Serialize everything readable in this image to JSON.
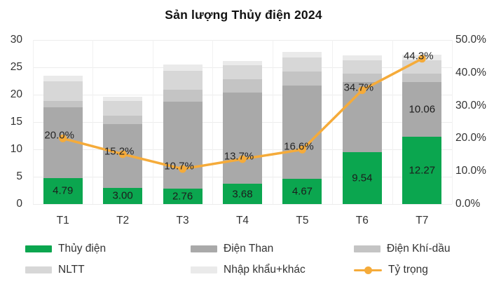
{
  "title": "Sản lượng Thủy điện 2024",
  "colors": {
    "hydro": "#0ba64f",
    "coal": "#a9a9a9",
    "gas": "#c4c4c4",
    "renewable": "#d7d7d7",
    "import": "#eaeaea",
    "line": "#f5ab3a",
    "grid": "#ececec",
    "text": "#2b2b2b"
  },
  "chart_data": {
    "type": "combo",
    "bar_type": "stacked-bar",
    "line_type": "line",
    "title": "Sản lượng Thủy điện 2024",
    "categories": [
      "T1",
      "T2",
      "T3",
      "T4",
      "T5",
      "T6",
      "T7"
    ],
    "bar_series": [
      {
        "name": "Thủy điện",
        "color_key": "hydro",
        "values": [
          4.79,
          3.0,
          2.76,
          3.68,
          4.67,
          9.54,
          12.27
        ],
        "labels": [
          "4.79",
          "3.00",
          "2.76",
          "3.68",
          "4.67",
          "9.54",
          "12.27"
        ]
      },
      {
        "name": "Điện Than",
        "color_key": "coal",
        "values": [
          12.9,
          11.6,
          15.9,
          16.7,
          17.0,
          12.8,
          10.06
        ],
        "labels": [
          null,
          null,
          null,
          null,
          null,
          null,
          "10.06"
        ]
      },
      {
        "name": "Điện Khí-dầu",
        "color_key": "gas",
        "values": [
          1.2,
          1.6,
          2.3,
          2.5,
          2.5,
          1.5,
          1.5
        ],
        "labels": [
          null,
          null,
          null,
          null,
          null,
          null,
          null
        ]
      },
      {
        "name": "NLTT",
        "color_key": "renewable",
        "values": [
          3.5,
          2.6,
          3.4,
          2.5,
          2.6,
          2.4,
          2.4
        ],
        "labels": [
          null,
          null,
          null,
          null,
          null,
          null,
          null
        ]
      },
      {
        "name": "Nhập khẩu+khác",
        "color_key": "import",
        "values": [
          1.1,
          0.8,
          1.1,
          0.8,
          1.0,
          1.0,
          1.1
        ],
        "labels": [
          null,
          null,
          null,
          null,
          null,
          null,
          null
        ]
      }
    ],
    "line_series": {
      "name": "Tỷ trọng",
      "axis": "right",
      "values": [
        20.0,
        15.2,
        10.7,
        13.7,
        16.6,
        34.7,
        44.3
      ],
      "labels": [
        "20.0%",
        "15.2%",
        "10.7%",
        "13.7%",
        "16.6%",
        "34.7%",
        "44.3%"
      ]
    },
    "left_axis": {
      "min": 0,
      "max": 30,
      "ticks": [
        "30",
        "25",
        "20",
        "15",
        "10",
        "5",
        "0"
      ]
    },
    "right_axis": {
      "min": 0,
      "max": 50,
      "ticks": [
        "50.0%",
        "40.0%",
        "30.0%",
        "20.0%",
        "10.0%",
        "0.0%"
      ]
    },
    "grid": true,
    "legend_position": "bottom"
  },
  "legend": {
    "items": [
      {
        "label": "Thủy điện",
        "swatch": "rect",
        "color_key": "hydro"
      },
      {
        "label": "Điện Than",
        "swatch": "rect",
        "color_key": "coal"
      },
      {
        "label": "Điện Khí-dầu",
        "swatch": "rect",
        "color_key": "gas"
      },
      {
        "label": "NLTT",
        "swatch": "rect",
        "color_key": "renewable"
      },
      {
        "label": "Nhập khẩu+khác",
        "swatch": "rect",
        "color_key": "import"
      },
      {
        "label": "Tỷ trọng",
        "swatch": "line",
        "color_key": "line"
      }
    ]
  }
}
